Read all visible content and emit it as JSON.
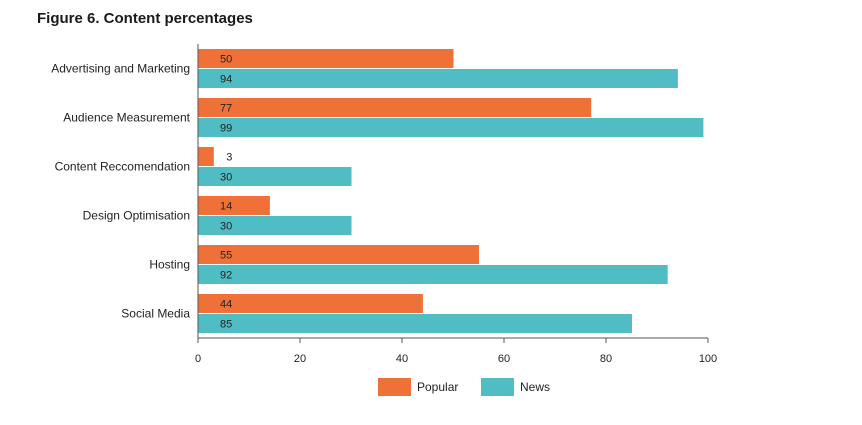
{
  "chart_data": {
    "type": "bar",
    "orientation": "horizontal",
    "title": "Figure 6. Content percentages",
    "xlabel": "",
    "ylabel": "",
    "xlim": [
      0,
      100
    ],
    "x_ticks": [
      0,
      20,
      40,
      60,
      80,
      100
    ],
    "grid": false,
    "legend_position": "bottom",
    "categories": [
      "Advertising and Marketing",
      "Audience Measurement",
      "Content Reccomendation",
      "Design Optimisation",
      "Hosting",
      "Social Media"
    ],
    "series": [
      {
        "name": "Popular",
        "color": "#f07138",
        "values": [
          50,
          77,
          3,
          14,
          55,
          44
        ]
      },
      {
        "name": "News",
        "color": "#4fbdc3",
        "values": [
          94,
          99,
          30,
          30,
          92,
          85
        ]
      }
    ]
  }
}
